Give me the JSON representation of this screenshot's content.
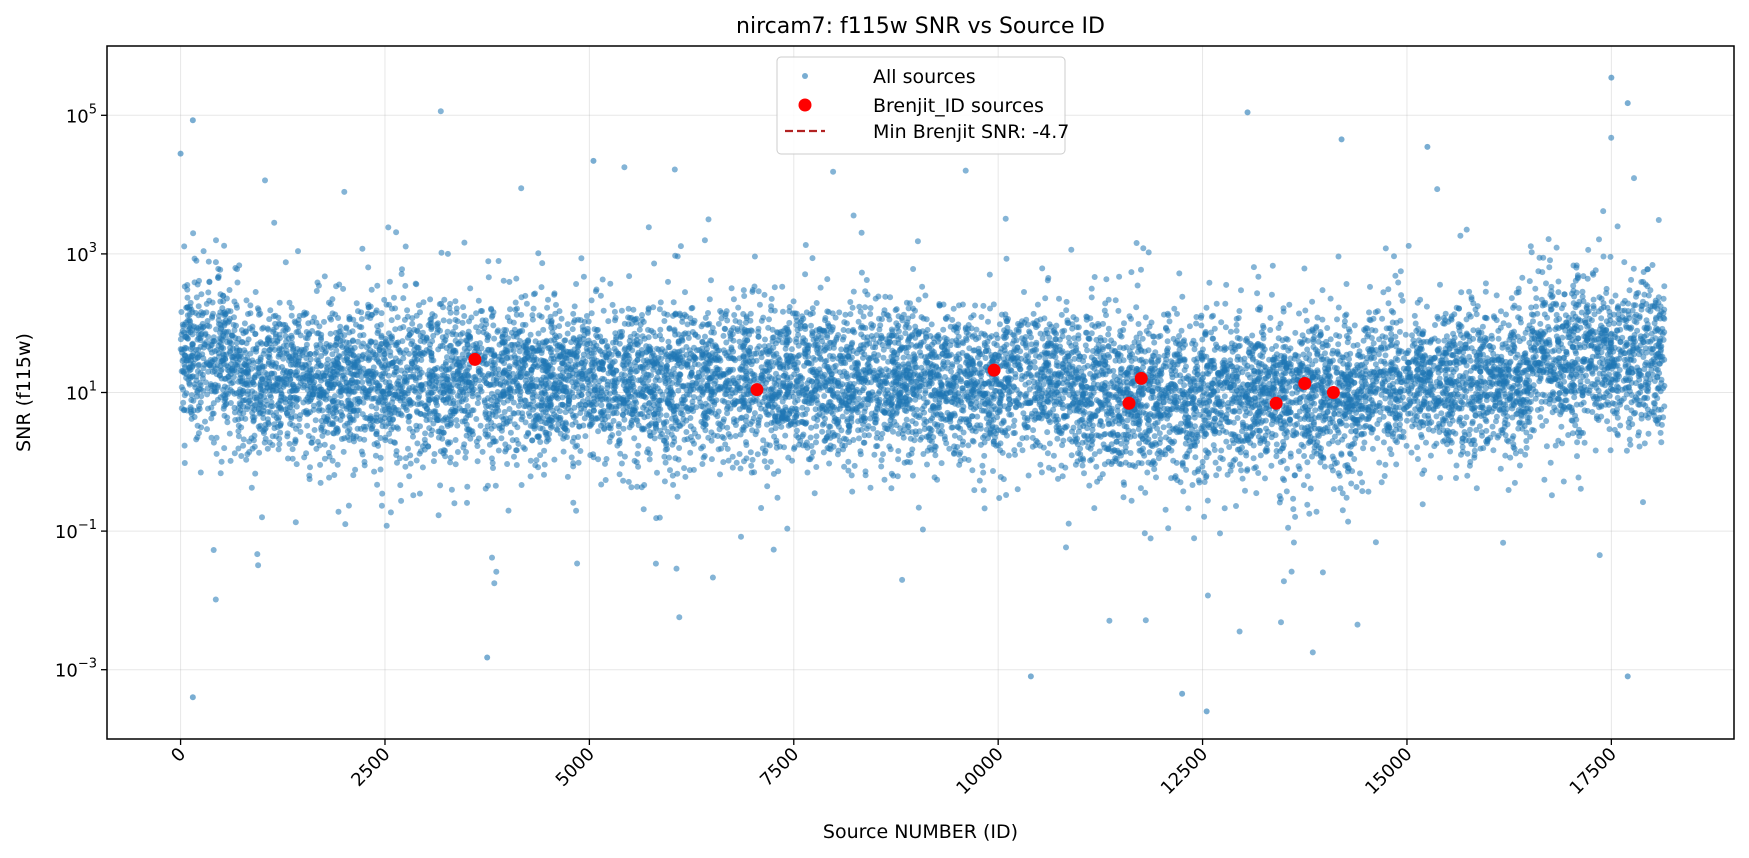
{
  "chart_data": {
    "type": "scatter",
    "title": "nircam7: f115w SNR vs Source ID",
    "xlabel": "Source NUMBER (ID)",
    "ylabel": "SNR (f115w)",
    "xlim": [
      -900,
      19000
    ],
    "ylim": [
      0.0001,
      1000000
    ],
    "yscale": "log",
    "grid": true,
    "legend_placement": "top-center",
    "x_ticks": [
      0,
      2500,
      5000,
      7500,
      10000,
      12500,
      15000,
      17500
    ],
    "x_tick_labels": [
      "0",
      "2500",
      "5000",
      "7500",
      "10000",
      "12500",
      "15000",
      "17500"
    ],
    "y_ticks": [
      0.001,
      0.1,
      10,
      1000,
      100000
    ],
    "y_tick_labels": [
      {
        "base": "10",
        "exp": "−3"
      },
      {
        "base": "10",
        "exp": "−1"
      },
      {
        "base": "10",
        "exp": "1"
      },
      {
        "base": "10",
        "exp": "3"
      },
      {
        "base": "10",
        "exp": "5"
      }
    ],
    "series": [
      {
        "name": "All sources",
        "color": "#1f77b4",
        "x_range": [
          0,
          18150
        ],
        "point_count": 18150,
        "notable_points": [
          {
            "x": 0,
            "y": 28000
          },
          {
            "x": 150,
            "y": 85000
          },
          {
            "x": 150,
            "y": 0.0004
          },
          {
            "x": 3750,
            "y": 0.0015
          },
          {
            "x": 10400,
            "y": 0.0008
          },
          {
            "x": 12250,
            "y": 0.00045
          },
          {
            "x": 12550,
            "y": 0.00025
          },
          {
            "x": 13050,
            "y": 110000
          },
          {
            "x": 14200,
            "y": 45000
          },
          {
            "x": 17500,
            "y": 350000
          },
          {
            "x": 17700,
            "y": 150000
          },
          {
            "x": 17700,
            "y": 0.0008
          },
          {
            "x": 15250,
            "y": 35000
          },
          {
            "x": 5050,
            "y": 22000
          }
        ]
      },
      {
        "name": "Brenjit_ID sources",
        "color": "#ff0000",
        "points": [
          {
            "x": 3600,
            "y": 30
          },
          {
            "x": 7050,
            "y": 11
          },
          {
            "x": 9950,
            "y": 21
          },
          {
            "x": 11600,
            "y": 7
          },
          {
            "x": 11750,
            "y": 16
          },
          {
            "x": 13400,
            "y": 7
          },
          {
            "x": 13750,
            "y": 13.5
          },
          {
            "x": 14100,
            "y": 10
          }
        ]
      }
    ],
    "legend": [
      {
        "label": "All sources",
        "marker": "circle-small",
        "color": "#1f77b4"
      },
      {
        "label": "Brenjit_ID sources",
        "marker": "circle",
        "color": "#ff0000"
      },
      {
        "label": "Min Brenjit SNR: -4.7",
        "marker": "dashed-line",
        "color": "#b22222"
      }
    ]
  }
}
